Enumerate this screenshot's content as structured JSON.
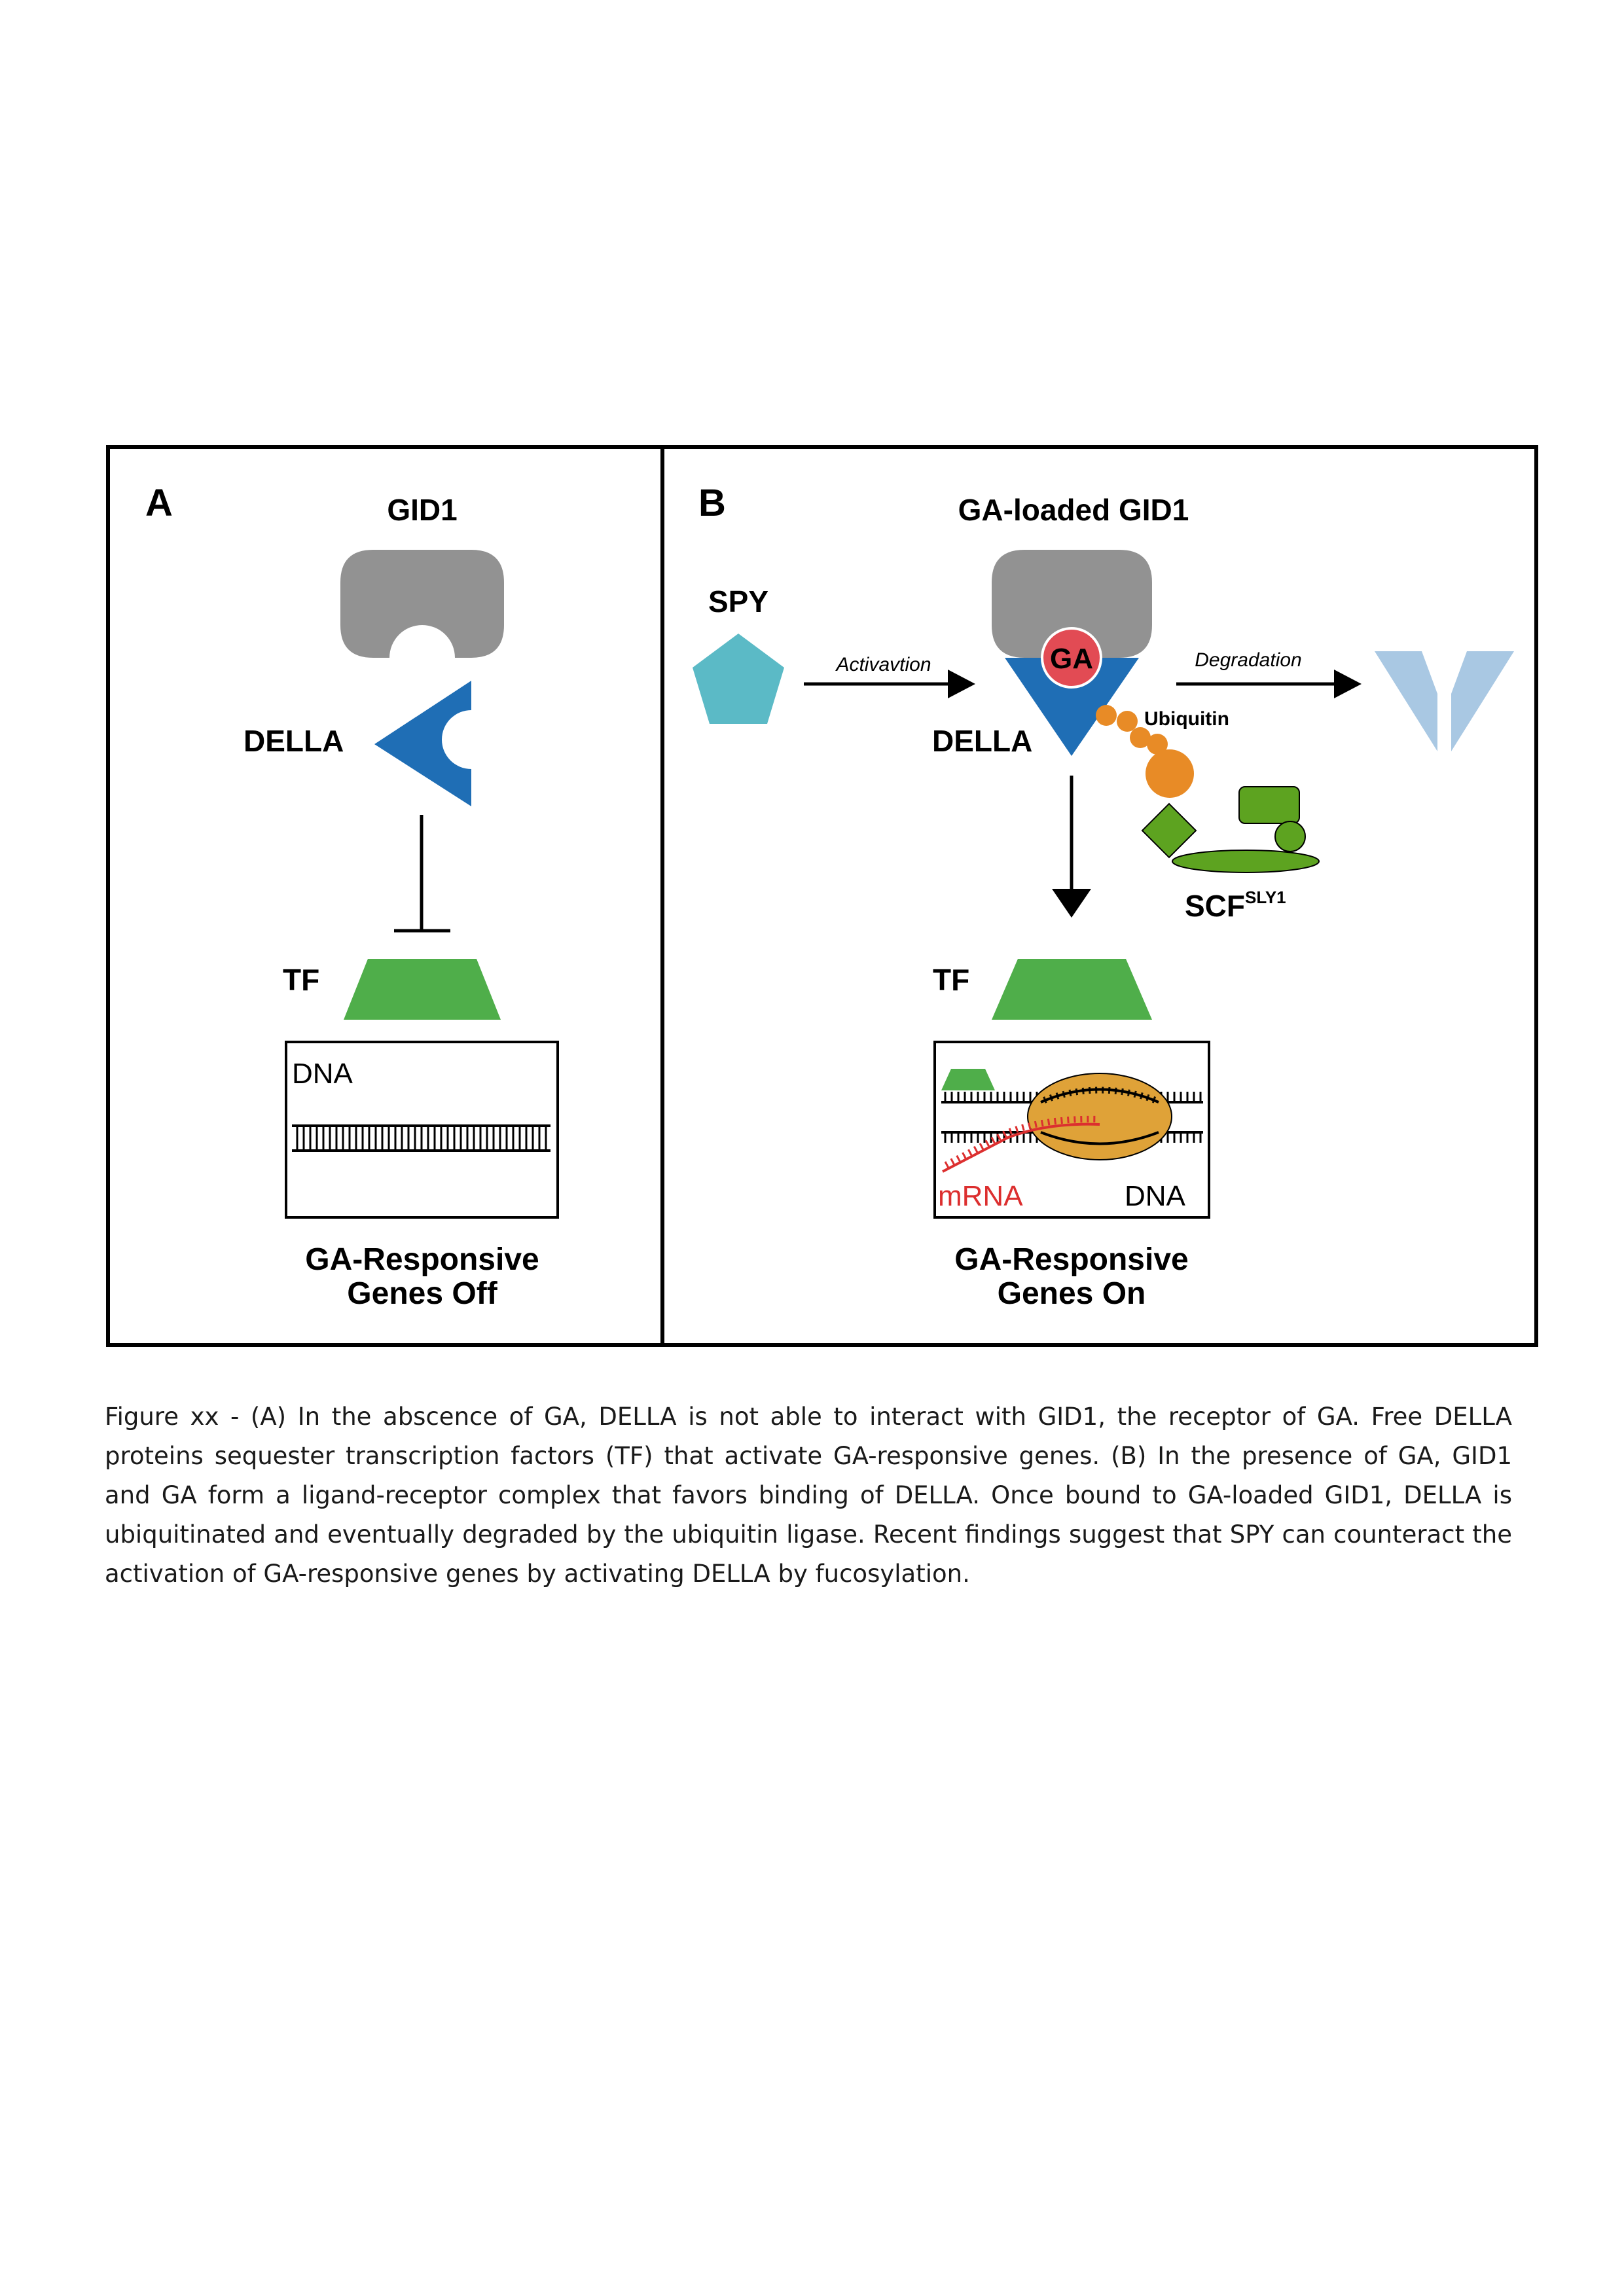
{
  "panel_a": {
    "letter": "A",
    "gid1_label": "GID1",
    "della_label": "DELLA",
    "tf_label": "TF",
    "dna_label": "DNA",
    "status_line1": "GA-Responsive",
    "status_line2": "Genes Off"
  },
  "panel_b": {
    "letter": "B",
    "gid1_label": "GA-loaded GID1",
    "ga_label": "GA",
    "spy_label": "SPY",
    "activation_label": "Activavtion",
    "degradation_label": "Degradation",
    "della_label": "DELLA",
    "ubiquitin_label": "Ubiquitin",
    "scf_label": "SCF",
    "scf_superscript": "SLY1",
    "tf_label": "TF",
    "mrna_label": "mRNA",
    "dna_label": "DNA",
    "status_line1": "GA-Responsive",
    "status_line2": "Genes On"
  },
  "colors": {
    "gid1": "#929292",
    "della": "#1f6eb5",
    "della_degraded": "#a9c8e3",
    "tf": "#4fae4a",
    "spy": "#5bbac6",
    "ga": "#e24b54",
    "ubiquitin": "#e88b26",
    "scf": "#5da320",
    "polymerase": "#dfa238",
    "mrna": "#dc2f2f"
  },
  "caption": "Figure xx - (A) In the abscence of GA, DELLA is not able to interact with GID1, the receptor of GA. Free DELLA proteins sequester transcription factors (TF) that activate GA-responsive genes. (B) In the presence of GA, GID1 and GA form a ligand-receptor complex that favors binding of DELLA. Once bound to GA-loaded GID1, DELLA is ubiquitinated and eventually degraded by the ubiquitin ligase. Recent findings suggest that SPY can counteract the activation of GA-responsive genes by activating DELLA by fucosylation."
}
